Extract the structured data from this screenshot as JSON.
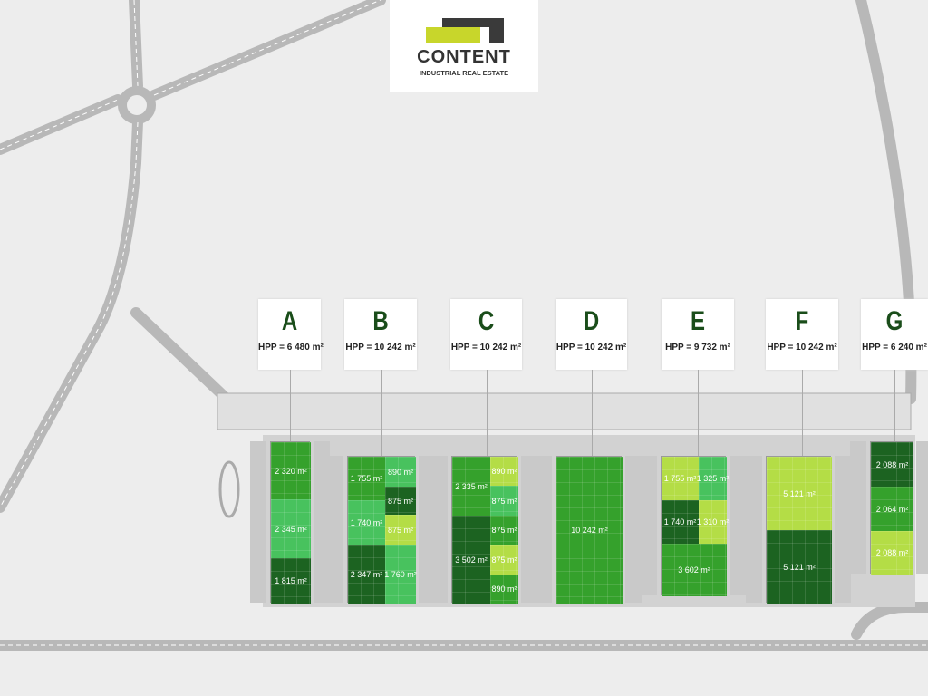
{
  "logo": {
    "name": "CONTENT",
    "subtitle": "INDUSTRIAL REAL ESTATE",
    "colors": {
      "accent": "#c8d62b",
      "dark": "#3a3a3a"
    }
  },
  "colors": {
    "dark": "#1c6321",
    "mid": "#35a12c",
    "mint": "#48c25e",
    "yellow": "#b4dd46"
  },
  "buildings": [
    {
      "letter": "A",
      "hpp": "HPP = 6 480 m²",
      "units": [
        "2 320 m²",
        "2 345 m²",
        "1 815 m²"
      ]
    },
    {
      "letter": "B",
      "hpp": "HPP = 10 242 m²",
      "units": [
        "1 755 m²",
        "1 740 m²",
        "2 347 m²",
        "890 m²",
        "875 m²",
        "875 m²",
        "1 760 m²"
      ]
    },
    {
      "letter": "C",
      "hpp": "HPP = 10 242 m²",
      "units": [
        "2 335 m²",
        "3 502 m²",
        "890 m²",
        "875 m²",
        "875 m²",
        "875 m²",
        "890 m²"
      ]
    },
    {
      "letter": "D",
      "hpp": "HPP = 10 242 m²",
      "units": [
        "10 242 m²"
      ]
    },
    {
      "letter": "E",
      "hpp": "HPP = 9 732 m²",
      "units": [
        "1 755 m²",
        "1 740 m²",
        "1 325 m²",
        "1 310 m²",
        "3 602 m²"
      ]
    },
    {
      "letter": "F",
      "hpp": "HPP = 10 242 m²",
      "units": [
        "5 121 m²",
        "5 121 m²"
      ]
    },
    {
      "letter": "G",
      "hpp": "HPP = 6 240 m²",
      "units": [
        "2 088 m²",
        "2 064 m²",
        "2 088 m²"
      ]
    }
  ]
}
